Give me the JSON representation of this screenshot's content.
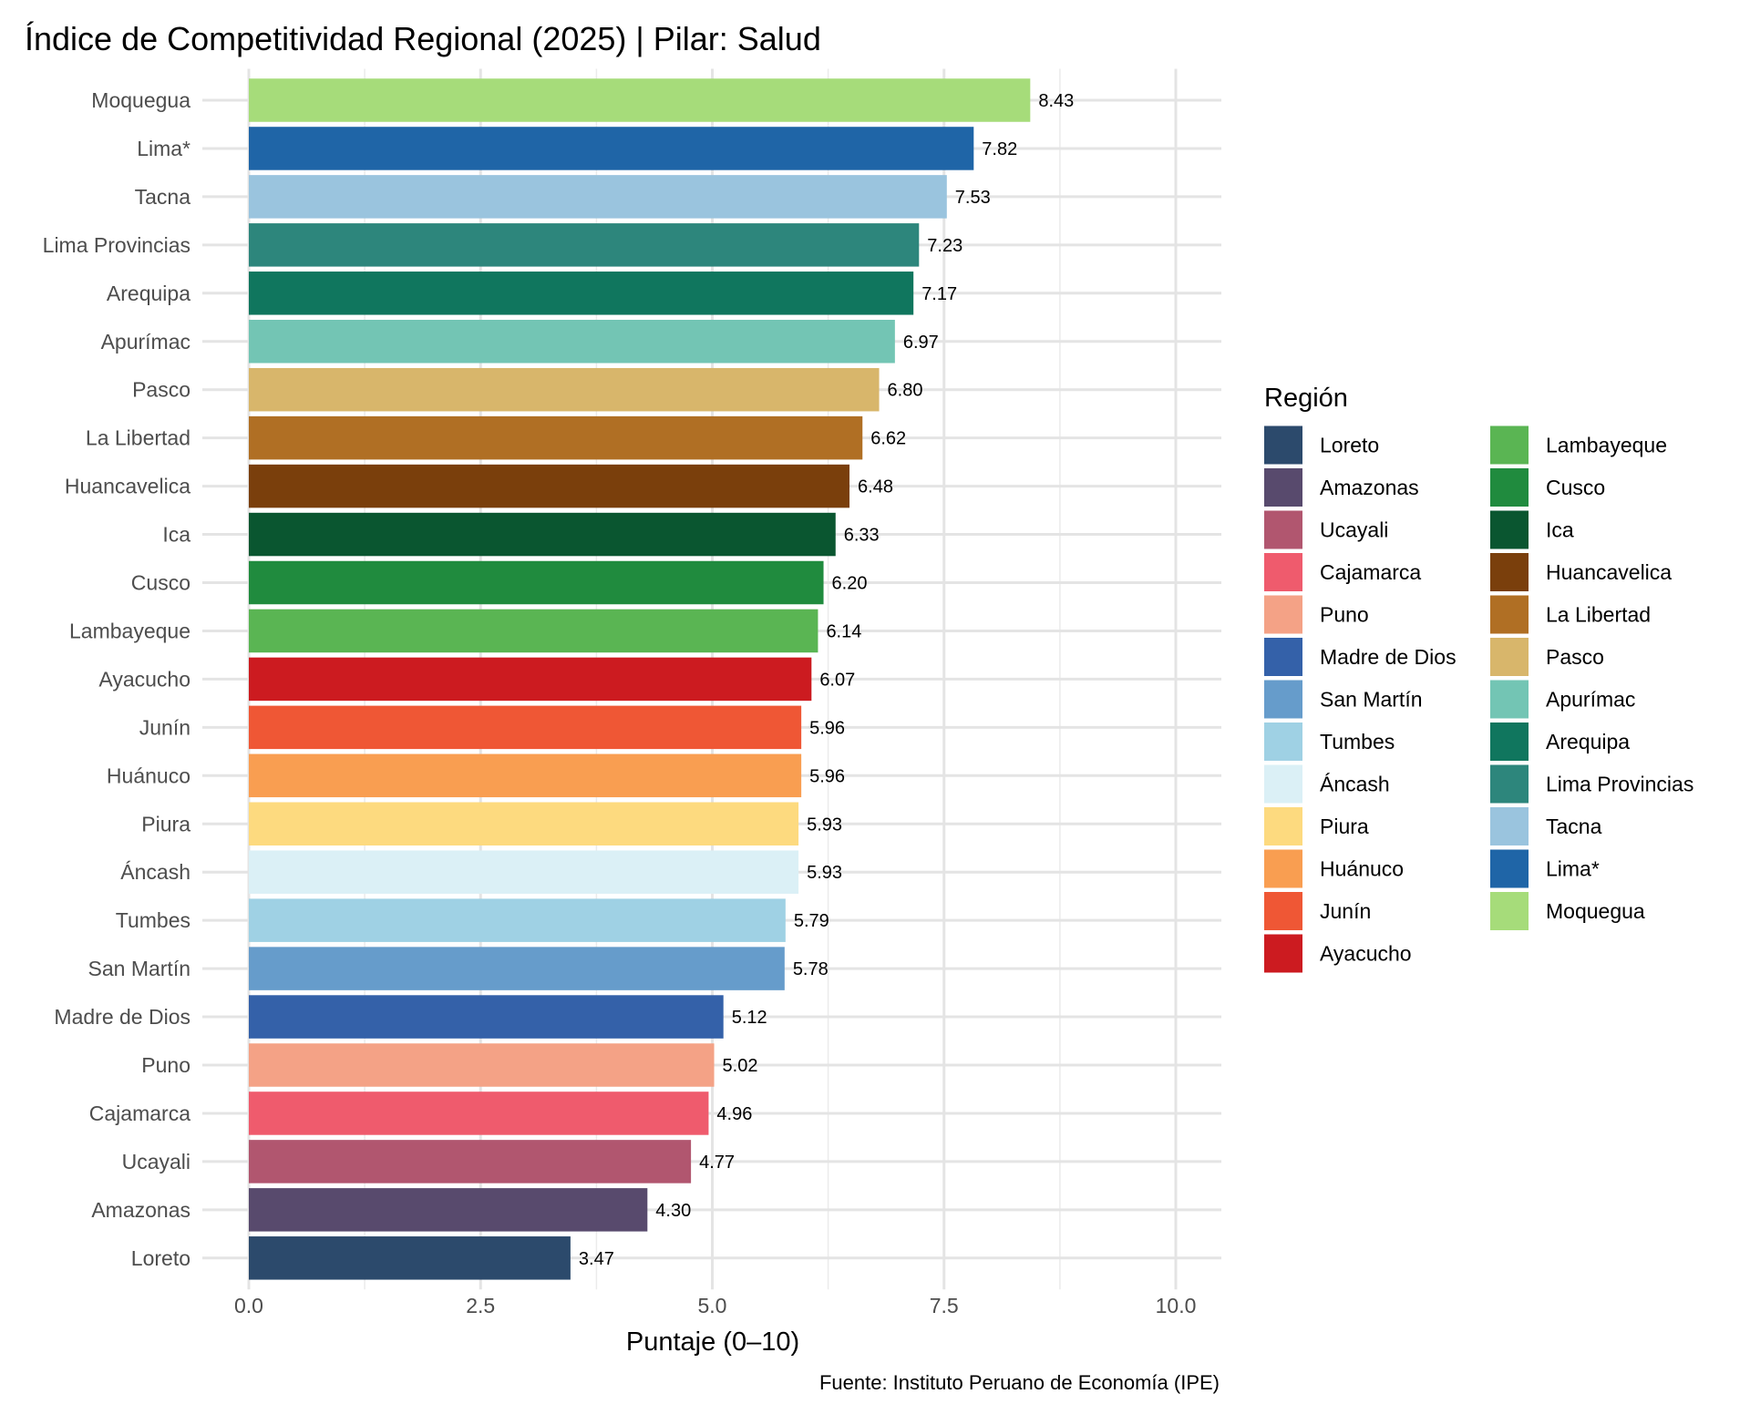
{
  "chart_data": {
    "type": "bar",
    "orientation": "horizontal",
    "title": "Índice de Competitividad Regional (2025) | Pilar: Salud",
    "xlabel": "Puntaje (0–10)",
    "ylabel": "",
    "caption": "Fuente: Instituto Peruano de Economía (IPE)",
    "xlim": [
      0,
      10
    ],
    "xticks": [
      "0.0",
      "2.5",
      "5.0",
      "7.5",
      "10.0"
    ],
    "grid": true,
    "legend_title": "Región",
    "legend_position": "right",
    "categories": [
      "Moquegua",
      "Lima*",
      "Tacna",
      "Lima Provincias",
      "Arequipa",
      "Apurímac",
      "Pasco",
      "La Libertad",
      "Huancavelica",
      "Ica",
      "Cusco",
      "Lambayeque",
      "Ayacucho",
      "Junín",
      "Huánuco",
      "Piura",
      "Áncash",
      "Tumbes",
      "San Martín",
      "Madre de Dios",
      "Puno",
      "Cajamarca",
      "Ucayali",
      "Amazonas",
      "Loreto"
    ],
    "values": [
      8.43,
      7.82,
      7.53,
      7.23,
      7.17,
      6.97,
      6.8,
      6.62,
      6.48,
      6.33,
      6.2,
      6.14,
      6.07,
      5.96,
      5.96,
      5.93,
      5.93,
      5.79,
      5.78,
      5.12,
      5.02,
      4.96,
      4.77,
      4.3,
      3.47
    ],
    "value_labels": [
      "8.43",
      "7.82",
      "7.53",
      "7.23",
      "7.17",
      "6.97",
      "6.80",
      "6.62",
      "6.48",
      "6.33",
      "6.20",
      "6.14",
      "6.07",
      "5.96",
      "5.96",
      "5.93",
      "5.93",
      "5.79",
      "5.78",
      "5.12",
      "5.02",
      "4.96",
      "4.77",
      "4.30",
      "3.47"
    ],
    "colors": [
      "#a6dc7a",
      "#1f65a7",
      "#9ac4de",
      "#2d867c",
      "#10765e",
      "#73c5b4",
      "#d8b66b",
      "#b06f24",
      "#7a3f0c",
      "#0a5630",
      "#208b3e",
      "#5ab553",
      "#cc1b20",
      "#ef5735",
      "#f99e51",
      "#fdda7f",
      "#dbf0f6",
      "#9fd1e4",
      "#669ccb",
      "#3461a9",
      "#f4a286",
      "#ef5b6d",
      "#b1566f",
      "#584a6d",
      "#2c4a6c"
    ],
    "legend_items": [
      {
        "label": "Loreto",
        "color": "#2c4a6c"
      },
      {
        "label": "Amazonas",
        "color": "#584a6d"
      },
      {
        "label": "Ucayali",
        "color": "#b1566f"
      },
      {
        "label": "Cajamarca",
        "color": "#ef5b6d"
      },
      {
        "label": "Puno",
        "color": "#f4a286"
      },
      {
        "label": "Madre de Dios",
        "color": "#3461a9"
      },
      {
        "label": "San Martín",
        "color": "#669ccb"
      },
      {
        "label": "Tumbes",
        "color": "#9fd1e4"
      },
      {
        "label": "Áncash",
        "color": "#dbf0f6"
      },
      {
        "label": "Piura",
        "color": "#fdda7f"
      },
      {
        "label": "Huánuco",
        "color": "#f99e51"
      },
      {
        "label": "Junín",
        "color": "#ef5735"
      },
      {
        "label": "Ayacucho",
        "color": "#cc1b20"
      },
      {
        "label": "Lambayeque",
        "color": "#5ab553"
      },
      {
        "label": "Cusco",
        "color": "#208b3e"
      },
      {
        "label": "Ica",
        "color": "#0a5630"
      },
      {
        "label": "Huancavelica",
        "color": "#7a3f0c"
      },
      {
        "label": "La Libertad",
        "color": "#b06f24"
      },
      {
        "label": "Pasco",
        "color": "#d8b66b"
      },
      {
        "label": "Apurímac",
        "color": "#73c5b4"
      },
      {
        "label": "Arequipa",
        "color": "#10765e"
      },
      {
        "label": "Lima Provincias",
        "color": "#2d867c"
      },
      {
        "label": "Tacna",
        "color": "#9ac4de"
      },
      {
        "label": "Lima*",
        "color": "#1f65a7"
      },
      {
        "label": "Moquegua",
        "color": "#a6dc7a"
      }
    ]
  }
}
